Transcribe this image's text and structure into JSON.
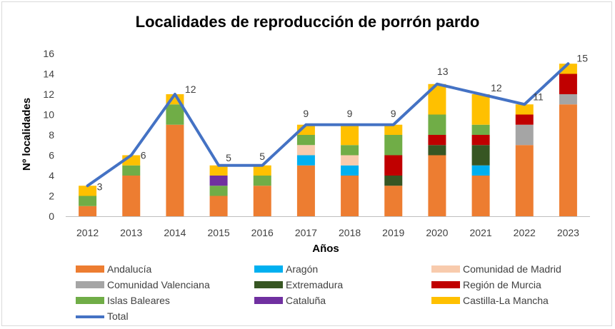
{
  "chart_data": {
    "type": "bar",
    "stacked": true,
    "title": "Localidades de reproducción de porrón pardo",
    "xlabel": "Años",
    "ylabel": "Nº localidades",
    "ylim": [
      0,
      16
    ],
    "yticks": [
      0,
      2,
      4,
      6,
      8,
      10,
      12,
      14,
      16
    ],
    "grid": false,
    "legend_position": "bottom",
    "categories": [
      "2012",
      "2013",
      "2014",
      "2015",
      "2016",
      "2017",
      "2018",
      "2019",
      "2020",
      "2021",
      "2022",
      "2023"
    ],
    "series": [
      {
        "name": "Andalucía",
        "color": "#ED7D31",
        "values": [
          1,
          4,
          9,
          2,
          3,
          5,
          4,
          3,
          6,
          4,
          7,
          11
        ]
      },
      {
        "name": "Aragón",
        "color": "#00B0F0",
        "values": [
          0,
          0,
          0,
          0,
          0,
          1,
          1,
          0,
          0,
          1,
          0,
          0
        ]
      },
      {
        "name": "Comunidad de Madrid",
        "color": "#F8CBAD",
        "values": [
          0,
          0,
          0,
          0,
          0,
          1,
          1,
          0,
          0,
          0,
          0,
          0
        ]
      },
      {
        "name": "Comunidad Valenciana",
        "color": "#A5A5A5",
        "values": [
          0,
          0,
          0,
          0,
          0,
          0,
          0,
          0,
          0,
          0,
          2,
          1
        ]
      },
      {
        "name": "Extremadura",
        "color": "#375623",
        "values": [
          0,
          0,
          0,
          0,
          0,
          0,
          0,
          1,
          1,
          2,
          0,
          0
        ]
      },
      {
        "name": "Región de Murcia",
        "color": "#C00000",
        "values": [
          0,
          0,
          0,
          0,
          0,
          0,
          0,
          2,
          1,
          1,
          1,
          2
        ]
      },
      {
        "name": "Islas Baleares",
        "color": "#70AD47",
        "values": [
          1,
          1,
          2,
          1,
          1,
          1,
          1,
          2,
          2,
          1,
          0,
          0
        ]
      },
      {
        "name": "Cataluña",
        "color": "#7030A0",
        "values": [
          0,
          0,
          0,
          1,
          0,
          0,
          0,
          0,
          0,
          0,
          0,
          0
        ]
      },
      {
        "name": "Castilla-La Mancha",
        "color": "#FFC000",
        "values": [
          1,
          1,
          1,
          1,
          1,
          1,
          2,
          1,
          3,
          3,
          1,
          1
        ]
      }
    ],
    "line_series": {
      "name": "Total",
      "color": "#4472C4",
      "values": [
        3,
        6,
        12,
        5,
        5,
        9,
        9,
        9,
        13,
        12,
        11,
        15
      ]
    }
  }
}
